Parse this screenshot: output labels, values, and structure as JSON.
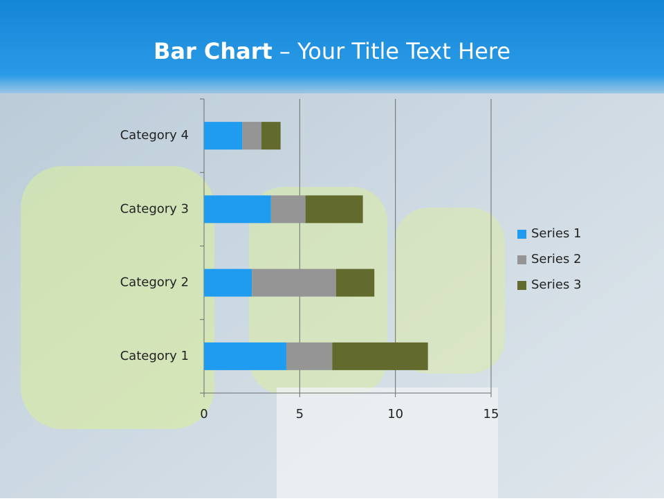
{
  "chart_data": {
    "type": "stacked-barh",
    "title": "Bar Chart",
    "title_rest": "– Your Title Text Here",
    "categories": [
      "Category 1",
      "Category 2",
      "Category 3",
      "Category 4"
    ],
    "series": [
      {
        "name": "Series 1",
        "color": "#1f9bf0",
        "values": [
          4.3,
          2.5,
          3.5,
          2.0
        ]
      },
      {
        "name": "Series 2",
        "color": "#959595",
        "values": [
          2.4,
          4.4,
          1.8,
          1.0
        ]
      },
      {
        "name": "Series 3",
        "color": "#636a2e",
        "values": [
          5.0,
          2.0,
          3.0,
          1.0
        ]
      }
    ],
    "xlim": [
      0,
      15
    ],
    "xticks": [
      0,
      5,
      10,
      15
    ],
    "grid": true,
    "legend": "right"
  }
}
